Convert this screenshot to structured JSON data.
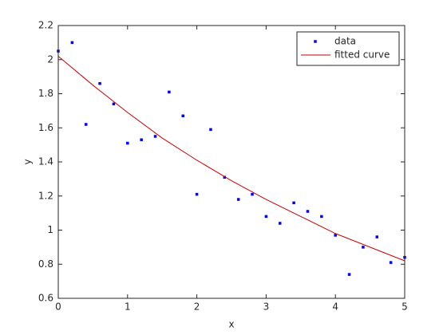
{
  "chart_data": {
    "type": "scatter",
    "x_label": "x",
    "y_label": "y",
    "xlim": [
      0,
      5
    ],
    "ylim": [
      0.6,
      2.2
    ],
    "xticks": [
      0,
      1,
      2,
      3,
      4,
      5
    ],
    "yticks": [
      0.6,
      0.8,
      1,
      1.2,
      1.4,
      1.6,
      1.8,
      2,
      2.2
    ],
    "legend_position": "northeast",
    "series": [
      {
        "name": "data",
        "mode": "markers",
        "color": "#0000ff",
        "x": [
          0,
          0.2,
          0.4,
          0.6,
          0.8,
          1,
          1.2,
          1.4,
          1.6,
          1.8,
          2,
          2.2,
          2.4,
          2.6,
          2.8,
          3,
          3.2,
          3.4,
          3.6,
          3.8,
          4,
          4.2,
          4.4,
          4.6,
          4.8,
          5
        ],
        "values": [
          2.05,
          2.1,
          1.62,
          1.86,
          1.74,
          1.51,
          1.53,
          1.55,
          1.81,
          1.67,
          1.21,
          1.59,
          1.31,
          1.18,
          1.21,
          1.08,
          1.04,
          1.16,
          1.11,
          1.08,
          0.97,
          0.74,
          0.9,
          0.96,
          0.81,
          0.84
        ]
      },
      {
        "name": "fitted curve",
        "mode": "line",
        "color": "#cc0000",
        "x": [
          0,
          0.5,
          1,
          1.5,
          2,
          2.5,
          3,
          3.5,
          4,
          4.5,
          5
        ],
        "values": [
          2.02,
          1.85,
          1.69,
          1.54,
          1.41,
          1.29,
          1.18,
          1.08,
          0.98,
          0.9,
          0.82
        ]
      }
    ]
  }
}
